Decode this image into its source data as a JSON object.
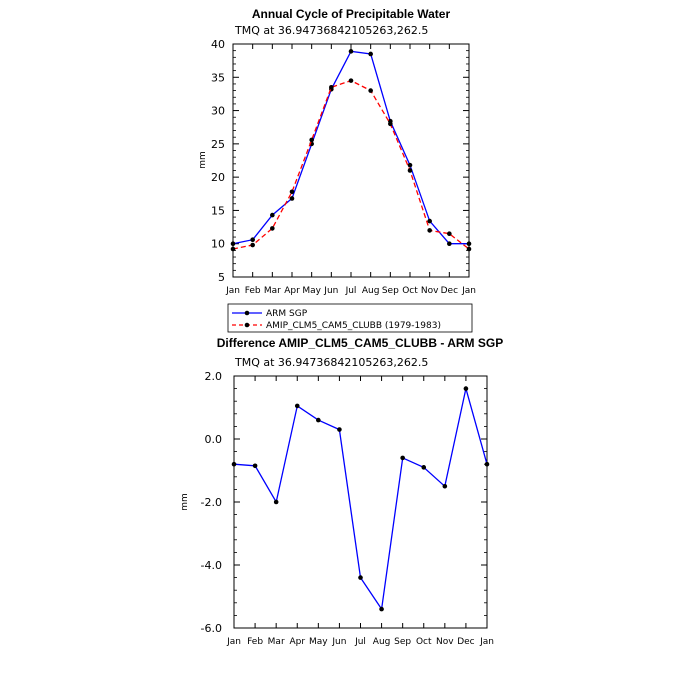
{
  "chart_data": [
    {
      "type": "line",
      "title": "Annual Cycle of Precipitable Water",
      "subtitle": "TMQ  at  36.94736842105263,262.5",
      "xlabel": "",
      "ylabel": "mm",
      "categories": [
        "Jan",
        "Feb",
        "Mar",
        "Apr",
        "May",
        "Jun",
        "Jul",
        "Aug",
        "Sep",
        "Oct",
        "Nov",
        "Dec",
        "Jan"
      ],
      "ylim": [
        5,
        40
      ],
      "yticks": [
        "5",
        "10",
        "15",
        "20",
        "25",
        "30",
        "35",
        "40"
      ],
      "series": [
        {
          "name": "ARM SGP",
          "color": "#0000ff",
          "dash": "solid",
          "values": [
            10.0,
            10.6,
            14.3,
            16.8,
            25.0,
            33.2,
            38.9,
            38.5,
            28.4,
            21.8,
            13.4,
            10.0,
            10.0
          ]
        },
        {
          "name": "AMIP_CLM5_CAM5_CLUBB (1979-1983)",
          "color": "#ff0000",
          "dash": "dashed",
          "values": [
            9.2,
            9.8,
            12.3,
            17.8,
            25.6,
            33.5,
            34.5,
            33.0,
            28.0,
            21.0,
            12.0,
            11.5,
            9.2
          ]
        }
      ]
    },
    {
      "type": "line",
      "title": "Difference AMIP_CLM5_CAM5_CLUBB - ARM SGP",
      "subtitle": "TMQ  at  36.94736842105263,262.5",
      "xlabel": "",
      "ylabel": "mm",
      "categories": [
        "Jan",
        "Feb",
        "Mar",
        "Apr",
        "May",
        "Jun",
        "Jul",
        "Aug",
        "Sep",
        "Oct",
        "Nov",
        "Dec",
        "Jan"
      ],
      "ylim": [
        -6,
        2
      ],
      "yticks": [
        "2.0",
        "0.0",
        "-2.0",
        "-4.0",
        "-6.0"
      ],
      "series": [
        {
          "name": "Difference",
          "color": "#0000ff",
          "dash": "solid",
          "values": [
            -0.8,
            -0.85,
            -2.0,
            1.05,
            0.6,
            0.3,
            -4.4,
            -5.4,
            -0.6,
            -0.9,
            -1.5,
            1.6,
            -0.8
          ]
        }
      ]
    }
  ]
}
